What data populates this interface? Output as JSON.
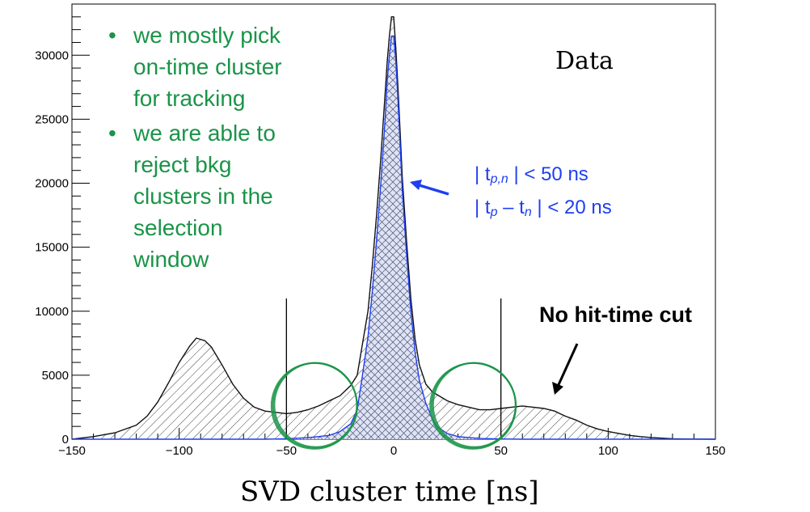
{
  "chart_data": {
    "type": "area",
    "xlabel": "SVD cluster time [ns]",
    "ylabel": "",
    "xlim": [
      -150,
      150
    ],
    "ylim": [
      0,
      34000
    ],
    "xticks": [
      -150,
      -100,
      -50,
      0,
      50,
      100,
      150
    ],
    "yticks": [
      0,
      5000,
      10000,
      15000,
      20000,
      25000,
      30000
    ],
    "grid": false,
    "series": [
      {
        "name": "No hit-time cut",
        "style": "hatched-diagonal",
        "x": [
          -150,
          -140,
          -130,
          -120,
          -115,
          -110,
          -105,
          -100,
          -95,
          -92,
          -88,
          -85,
          -80,
          -75,
          -70,
          -65,
          -60,
          -55,
          -50,
          -45,
          -40,
          -35,
          -30,
          -25,
          -20,
          -17,
          -15,
          -12,
          -10,
          -8,
          -6,
          -4,
          -3,
          -2,
          -1,
          0,
          1,
          2,
          3,
          4,
          6,
          8,
          10,
          12,
          15,
          18,
          20,
          25,
          30,
          35,
          40,
          45,
          50,
          55,
          60,
          65,
          70,
          75,
          80,
          85,
          90,
          95,
          100,
          105,
          110,
          115,
          120,
          125,
          130,
          135,
          140,
          150
        ],
        "y": [
          0,
          200,
          500,
          1100,
          1800,
          2900,
          4400,
          6000,
          7300,
          7900,
          7700,
          7200,
          5800,
          4300,
          3200,
          2500,
          2200,
          2100,
          2000,
          2100,
          2300,
          2600,
          3000,
          3400,
          4200,
          5000,
          7000,
          10000,
          13500,
          17500,
          22000,
          27000,
          29500,
          31500,
          33000,
          33000,
          30500,
          27500,
          24000,
          20500,
          15500,
          11000,
          7800,
          5800,
          4300,
          3700,
          3500,
          3000,
          2700,
          2500,
          2300,
          2300,
          2400,
          2500,
          2600,
          2500,
          2400,
          2200,
          1800,
          1500,
          1100,
          800,
          600,
          450,
          300,
          200,
          130,
          80,
          40,
          20,
          10,
          0
        ]
      },
      {
        "name": "",
        "style": "crosshatched-blue",
        "x": [
          -150,
          -60,
          -50,
          -40,
          -30,
          -25,
          -20,
          -17,
          -15,
          -12,
          -10,
          -8,
          -6,
          -4,
          -3,
          -2,
          -1,
          0,
          1,
          2,
          3,
          4,
          6,
          8,
          10,
          12,
          15,
          18,
          20,
          25,
          30,
          40,
          50,
          60,
          150
        ],
        "y": [
          0,
          0,
          40,
          120,
          300,
          600,
          1200,
          2300,
          4500,
          8000,
          11500,
          15500,
          20000,
          25000,
          28000,
          30000,
          31500,
          31500,
          29500,
          26500,
          23000,
          19500,
          14500,
          10000,
          6800,
          4600,
          2800,
          1600,
          1000,
          450,
          200,
          60,
          20,
          0,
          0
        ]
      }
    ],
    "annotations": {
      "bullets": [
        [
          "we mostly pick",
          "on-time cluster",
          "for tracking"
        ],
        [
          "we are able to",
          "reject bkg",
          "clusters in the",
          "selection",
          "window"
        ]
      ],
      "data_label": "Data",
      "cuts": [
        "| t",
        "p,n",
        " | < 50 ns",
        "| t",
        "p",
        " – t",
        "n",
        " | < 20 ns"
      ],
      "no_cut_label": "No hit-time cut",
      "window_lines": [
        -50,
        50
      ],
      "circles_at": [
        -37,
        37
      ]
    },
    "colors": {
      "hist_line": "#111111",
      "blue": "#1f3ff0",
      "green": "#1a9448",
      "bullet": "#1a9448"
    }
  }
}
